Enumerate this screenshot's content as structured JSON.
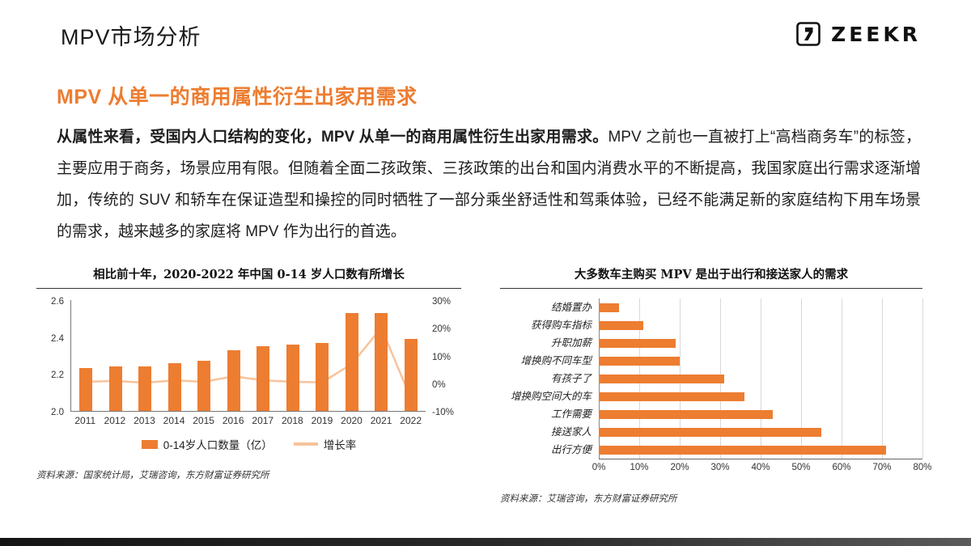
{
  "slide": {
    "page_title": "MPV市场分析",
    "logo_text": "ZEEKR",
    "heading": "MPV 从单一的商用属性衍生出家用需求",
    "paragraph_bold": "从属性来看，受国内人口结构的变化，MPV 从单一的商用属性衍生出家用需求。",
    "paragraph_rest": "MPV 之前也一直被打上“高档商务车”的标签，主要应用于商务，场景应用有限。但随着全面二孩政策、三孩政策的出台和国内消费水平的不断提高，我国家庭出行需求逐渐增加，传统的 SUV 和轿车在保证造型和操控的同时牺牲了一部分乘坐舒适性和驾乘体验，已经不能满足新的家庭结构下用车场景的需求，越来越多的家庭将 MPV 作为出行的首选。"
  },
  "colors": {
    "accent": "#ED7D31",
    "line_series": "#F8C39B"
  },
  "chart_data": [
    {
      "type": "bar",
      "subtype": "combo-bar-line",
      "title": "相比前十年，2020-2022 年中国 0-14 岁人口数有所增长",
      "categories": [
        "2011",
        "2012",
        "2013",
        "2014",
        "2015",
        "2016",
        "2017",
        "2018",
        "2019",
        "2020",
        "2021",
        "2022"
      ],
      "series": [
        {
          "name": "0-14岁人口数量（亿）",
          "type": "bar",
          "axis": "left",
          "values": [
            2.23,
            2.24,
            2.24,
            2.26,
            2.27,
            2.33,
            2.35,
            2.36,
            2.37,
            2.53,
            2.53,
            2.39
          ]
        },
        {
          "name": "增长率",
          "type": "line",
          "axis": "right",
          "values": [
            0.5,
            0.8,
            0.2,
            1.0,
            0.5,
            2.5,
            1.0,
            0.5,
            0.3,
            7.0,
            20.0,
            -5.5
          ]
        }
      ],
      "left_axis": {
        "min": 2.0,
        "max": 2.6,
        "ticks": [
          "2.0",
          "2.2",
          "2.4",
          "2.6"
        ]
      },
      "right_axis": {
        "min": -10,
        "max": 30,
        "ticks": [
          "-10%",
          "0%",
          "10%",
          "20%",
          "30%"
        ]
      },
      "legend_position": "bottom",
      "grid": false,
      "source": "资料来源：国家统计局，艾瑞咨询，东方财富证券研究所"
    },
    {
      "type": "bar",
      "orientation": "horizontal",
      "title": "大多数车主购买 MPV 是出于出行和接送家人的需求",
      "categories": [
        "结婚置办",
        "获得购车指标",
        "升职加薪",
        "增换购不同车型",
        "有孩子了",
        "增换购空间大的车",
        "工作需要",
        "接送家人",
        "出行方便"
      ],
      "values": [
        5,
        11,
        19,
        20,
        31,
        36,
        43,
        55,
        71
      ],
      "xlim": [
        0,
        80
      ],
      "x_ticks": [
        "0%",
        "10%",
        "20%",
        "30%",
        "40%",
        "50%",
        "60%",
        "70%",
        "80%"
      ],
      "grid": true,
      "source": "资料来源：艾瑞咨询，东方财富证券研究所"
    }
  ]
}
